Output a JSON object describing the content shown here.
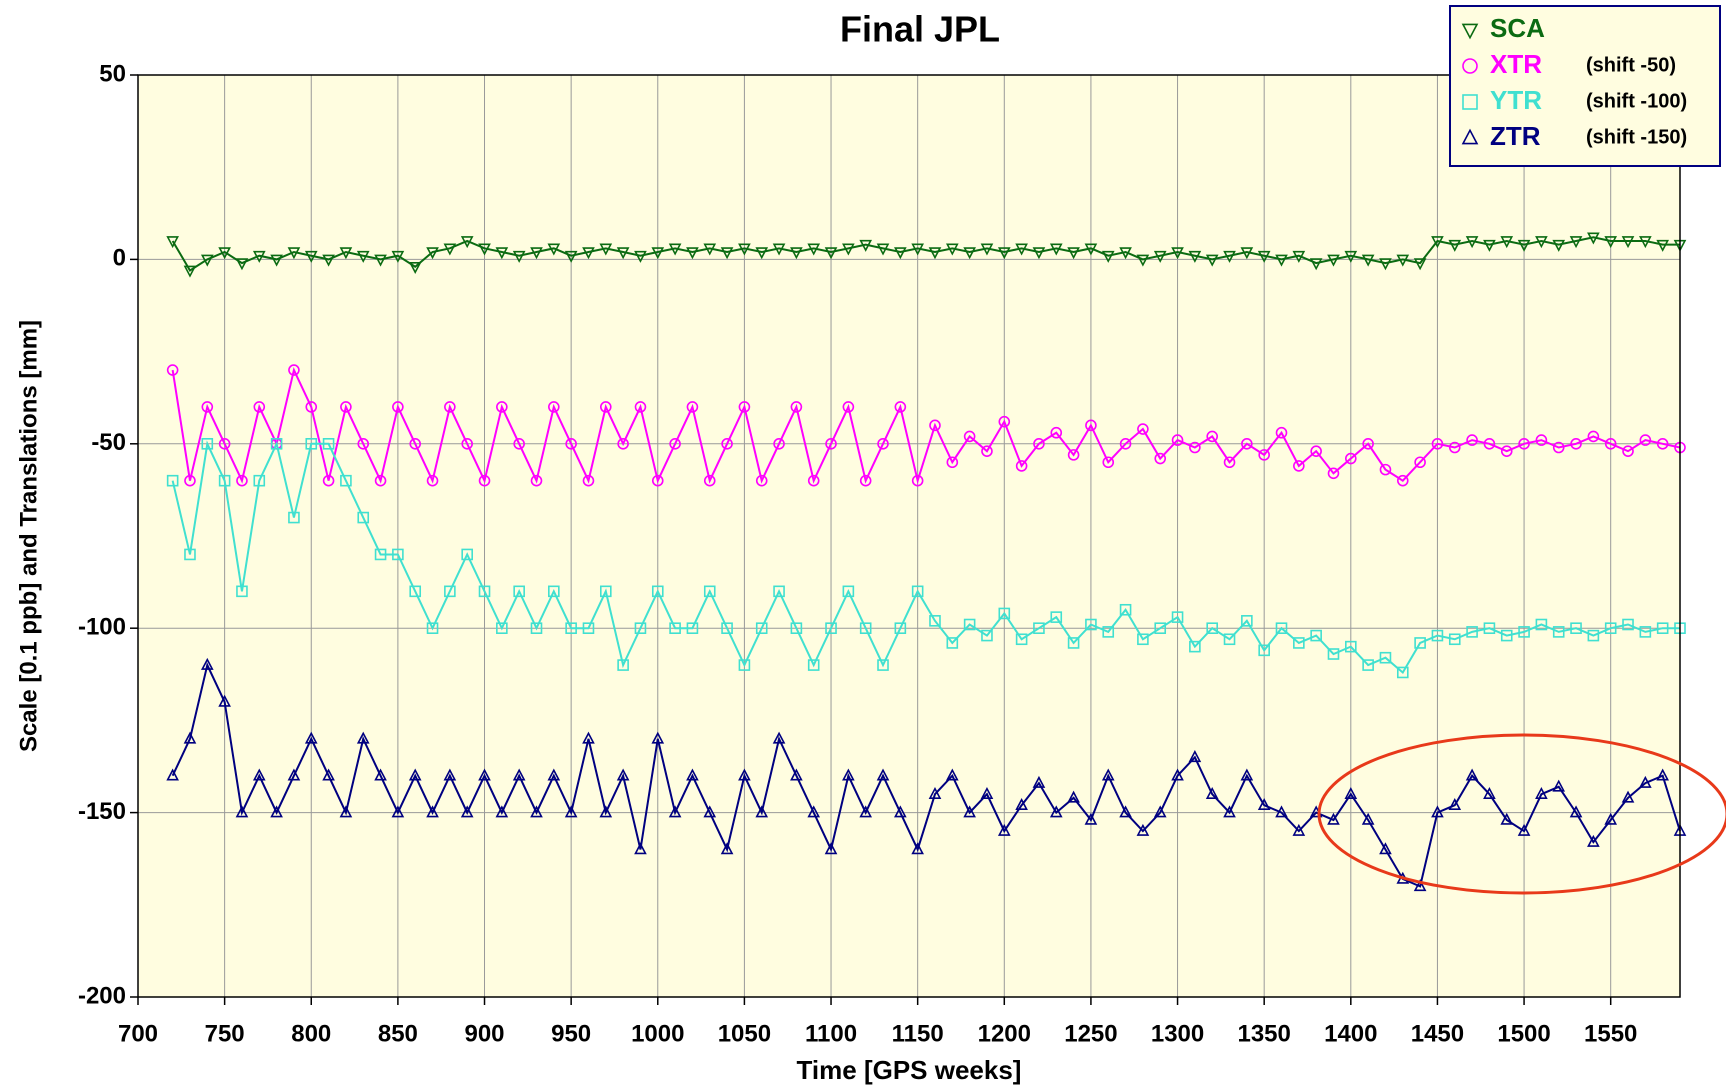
{
  "chart_data": {
    "type": "line",
    "title": "Final JPL",
    "x_label": "Time [GPS weeks]",
    "y_label": "Scale [0.1 ppb] and Translations [mm]",
    "xlim": [
      700,
      1590
    ],
    "ylim": [
      -200,
      50
    ],
    "xticks": [
      700,
      750,
      800,
      850,
      900,
      950,
      1000,
      1050,
      1100,
      1150,
      1200,
      1250,
      1300,
      1350,
      1400,
      1450,
      1500,
      1550
    ],
    "yticks": [
      -200,
      -150,
      -100,
      -50,
      0,
      50
    ],
    "grid": true,
    "legend": "top-right",
    "x": [
      720,
      730,
      740,
      750,
      760,
      770,
      780,
      790,
      800,
      810,
      820,
      830,
      840,
      850,
      860,
      870,
      880,
      890,
      900,
      910,
      920,
      930,
      940,
      950,
      960,
      970,
      980,
      990,
      1000,
      1010,
      1020,
      1030,
      1040,
      1050,
      1060,
      1070,
      1080,
      1090,
      1100,
      1110,
      1120,
      1130,
      1140,
      1150,
      1160,
      1170,
      1180,
      1190,
      1200,
      1210,
      1220,
      1230,
      1240,
      1250,
      1260,
      1270,
      1280,
      1290,
      1300,
      1310,
      1320,
      1330,
      1340,
      1350,
      1360,
      1370,
      1380,
      1390,
      1400,
      1410,
      1420,
      1430,
      1440,
      1450,
      1460,
      1470,
      1480,
      1490,
      1500,
      1510,
      1520,
      1530,
      1540,
      1550,
      1560,
      1570,
      1580,
      1590
    ],
    "series": [
      {
        "name": "SCA",
        "color": "#0b6b12",
        "marker": "triangle-down",
        "values": [
          5,
          -3,
          0,
          2,
          -1,
          1,
          0,
          2,
          1,
          0,
          2,
          1,
          0,
          1,
          -2,
          2,
          3,
          5,
          3,
          2,
          1,
          2,
          3,
          1,
          2,
          3,
          2,
          1,
          2,
          3,
          2,
          3,
          2,
          3,
          2,
          3,
          2,
          3,
          2,
          3,
          4,
          3,
          2,
          3,
          2,
          3,
          2,
          3,
          2,
          3,
          2,
          3,
          2,
          3,
          1,
          2,
          0,
          1,
          2,
          1,
          0,
          1,
          2,
          1,
          0,
          1,
          -1,
          0,
          1,
          0,
          -1,
          0,
          -1,
          5,
          4,
          5,
          4,
          5,
          4,
          5,
          4,
          5,
          6,
          5,
          5,
          5,
          4,
          4
        ]
      },
      {
        "name": "XTR",
        "note": "(shift -50)",
        "color": "#ff00ff",
        "marker": "circle",
        "values": [
          -30,
          -60,
          -40,
          -50,
          -60,
          -40,
          -50,
          -30,
          -40,
          -60,
          -40,
          -50,
          -60,
          -40,
          -50,
          -60,
          -40,
          -50,
          -60,
          -40,
          -50,
          -60,
          -40,
          -50,
          -60,
          -40,
          -50,
          -40,
          -60,
          -50,
          -40,
          -60,
          -50,
          -40,
          -60,
          -50,
          -40,
          -60,
          -50,
          -40,
          -60,
          -50,
          -40,
          -60,
          -45,
          -55,
          -48,
          -52,
          -44,
          -56,
          -50,
          -47,
          -53,
          -45,
          -55,
          -50,
          -46,
          -54,
          -49,
          -51,
          -48,
          -55,
          -50,
          -53,
          -47,
          -56,
          -52,
          -58,
          -54,
          -50,
          -57,
          -60,
          -55,
          -50,
          -51,
          -49,
          -50,
          -52,
          -50,
          -49,
          -51,
          -50,
          -48,
          -50,
          -52,
          -49,
          -50,
          -51
        ]
      },
      {
        "name": "YTR",
        "note": "(shift -100)",
        "color": "#40e0d0",
        "marker": "square",
        "values": [
          -60,
          -80,
          -50,
          -60,
          -90,
          -60,
          -50,
          -70,
          -50,
          -50,
          -60,
          -70,
          -80,
          -80,
          -90,
          -100,
          -90,
          -80,
          -90,
          -100,
          -90,
          -100,
          -90,
          -100,
          -100,
          -90,
          -110,
          -100,
          -90,
          -100,
          -100,
          -90,
          -100,
          -110,
          -100,
          -90,
          -100,
          -110,
          -100,
          -90,
          -100,
          -110,
          -100,
          -90,
          -98,
          -104,
          -99,
          -102,
          -96,
          -103,
          -100,
          -97,
          -104,
          -99,
          -101,
          -95,
          -103,
          -100,
          -97,
          -105,
          -100,
          -103,
          -98,
          -106,
          -100,
          -104,
          -102,
          -107,
          -105,
          -110,
          -108,
          -112,
          -104,
          -102,
          -103,
          -101,
          -100,
          -102,
          -101,
          -99,
          -101,
          -100,
          -102,
          -100,
          -99,
          -101,
          -100,
          -100
        ]
      },
      {
        "name": "ZTR",
        "note": "(shift -150)",
        "color": "#000080",
        "marker": "triangle-up",
        "values": [
          -140,
          -130,
          -110,
          -120,
          -150,
          -140,
          -150,
          -140,
          -130,
          -140,
          -150,
          -130,
          -140,
          -150,
          -140,
          -150,
          -140,
          -150,
          -140,
          -150,
          -140,
          -150,
          -140,
          -150,
          -130,
          -150,
          -140,
          -160,
          -130,
          -150,
          -140,
          -150,
          -160,
          -140,
          -150,
          -130,
          -140,
          -150,
          -160,
          -140,
          -150,
          -140,
          -150,
          -160,
          -145,
          -140,
          -150,
          -145,
          -155,
          -148,
          -142,
          -150,
          -146,
          -152,
          -140,
          -150,
          -155,
          -150,
          -140,
          -135,
          -145,
          -150,
          -140,
          -148,
          -150,
          -155,
          -150,
          -152,
          -145,
          -152,
          -160,
          -168,
          -170,
          -150,
          -148,
          -140,
          -145,
          -152,
          -155,
          -145,
          -143,
          -150,
          -158,
          -152,
          -146,
          -142,
          -140,
          -155
        ]
      }
    ]
  }
}
